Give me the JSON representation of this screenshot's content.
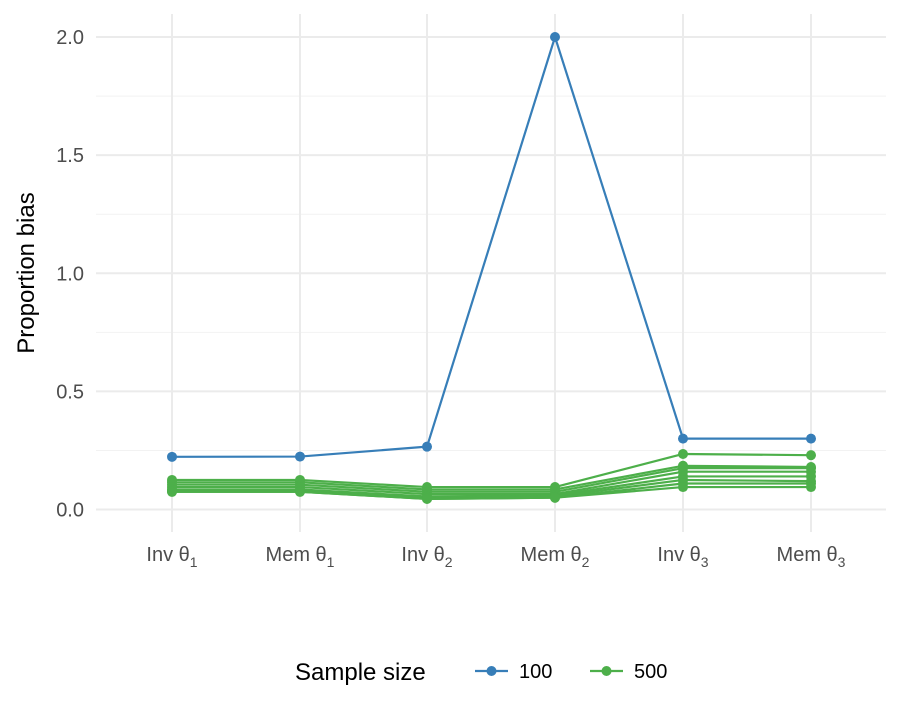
{
  "chart_data": {
    "type": "line",
    "ylabel": "Proportion bias",
    "xlabel": "",
    "categories": [
      {
        "main": "Inv θ",
        "sub": "1"
      },
      {
        "main": "Mem θ",
        "sub": "1"
      },
      {
        "main": "Inv θ",
        "sub": "2"
      },
      {
        "main": "Mem θ",
        "sub": "2"
      },
      {
        "main": "Inv θ",
        "sub": "3"
      },
      {
        "main": "Mem θ",
        "sub": "3"
      }
    ],
    "y_ticks": [
      "0.0",
      "0.5",
      "1.0",
      "1.5",
      "2.0"
    ],
    "y_tick_values": [
      0,
      0.5,
      1.0,
      1.5,
      2.0
    ],
    "ylim": [
      -0.1,
      2.1
    ],
    "grid": true,
    "legend": {
      "title": "Sample size",
      "position": "bottom",
      "entries": [
        {
          "label": "100",
          "color": "#377eb8"
        },
        {
          "label": "500",
          "color": "#4daf4a"
        }
      ]
    },
    "series": [
      {
        "group": "100",
        "values": [
          0.223,
          0.224,
          0.266,
          2.0,
          0.3,
          0.3
        ]
      },
      {
        "group": "500",
        "values": [
          0.125,
          0.125,
          0.095,
          0.095,
          0.235,
          0.23
        ]
      },
      {
        "group": "500",
        "values": [
          0.115,
          0.115,
          0.085,
          0.085,
          0.185,
          0.18
        ]
      },
      {
        "group": "500",
        "values": [
          0.105,
          0.105,
          0.075,
          0.075,
          0.175,
          0.175
        ]
      },
      {
        "group": "500",
        "values": [
          0.095,
          0.095,
          0.065,
          0.065,
          0.16,
          0.16
        ]
      },
      {
        "group": "500",
        "values": [
          0.085,
          0.085,
          0.055,
          0.06,
          0.14,
          0.14
        ]
      },
      {
        "group": "500",
        "values": [
          0.08,
          0.08,
          0.05,
          0.055,
          0.125,
          0.12
        ]
      },
      {
        "group": "500",
        "values": [
          0.075,
          0.075,
          0.045,
          0.05,
          0.11,
          0.11
        ]
      },
      {
        "group": "500",
        "values": [
          0.075,
          0.075,
          0.045,
          0.05,
          0.095,
          0.095
        ]
      }
    ]
  }
}
